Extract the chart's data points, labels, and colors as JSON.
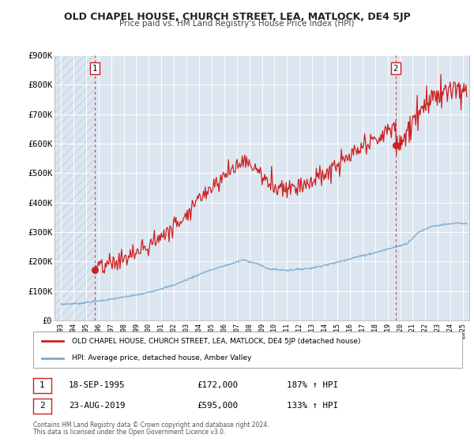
{
  "title": "OLD CHAPEL HOUSE, CHURCH STREET, LEA, MATLOCK, DE4 5JP",
  "subtitle": "Price paid vs. HM Land Registry's House Price Index (HPI)",
  "legend_line1": "OLD CHAPEL HOUSE, CHURCH STREET, LEA, MATLOCK, DE4 5JP (detached house)",
  "legend_line2": "HPI: Average price, detached house, Amber Valley",
  "annotation1_date": "18-SEP-1995",
  "annotation1_price": "£172,000",
  "annotation1_hpi": "187% ↑ HPI",
  "annotation2_date": "23-AUG-2019",
  "annotation2_price": "£595,000",
  "annotation2_hpi": "133% ↑ HPI",
  "footer1": "Contains HM Land Registry data © Crown copyright and database right 2024.",
  "footer2": "This data is licensed under the Open Government Licence v3.0.",
  "red_line_color": "#cc2222",
  "blue_line_color": "#7aaad0",
  "background_color": "#ffffff",
  "plot_bg_color": "#dce6f0",
  "grid_color": "#ffffff",
  "hatch_color": "#c8d4e4",
  "ylim": [
    0,
    900000
  ],
  "yticks": [
    0,
    100000,
    200000,
    300000,
    400000,
    500000,
    600000,
    700000,
    800000,
    900000
  ],
  "ytick_labels": [
    "£0",
    "£100K",
    "£200K",
    "£300K",
    "£400K",
    "£500K",
    "£600K",
    "£700K",
    "£800K",
    "£900K"
  ],
  "marker1_x": 1995.72,
  "marker1_y": 172000,
  "marker2_x": 2019.64,
  "marker2_y": 595000,
  "vline1_x": 1995.72,
  "vline2_x": 2019.64,
  "xmin": 1992.5,
  "xmax": 2025.5,
  "hatch_xend": 1995.72
}
